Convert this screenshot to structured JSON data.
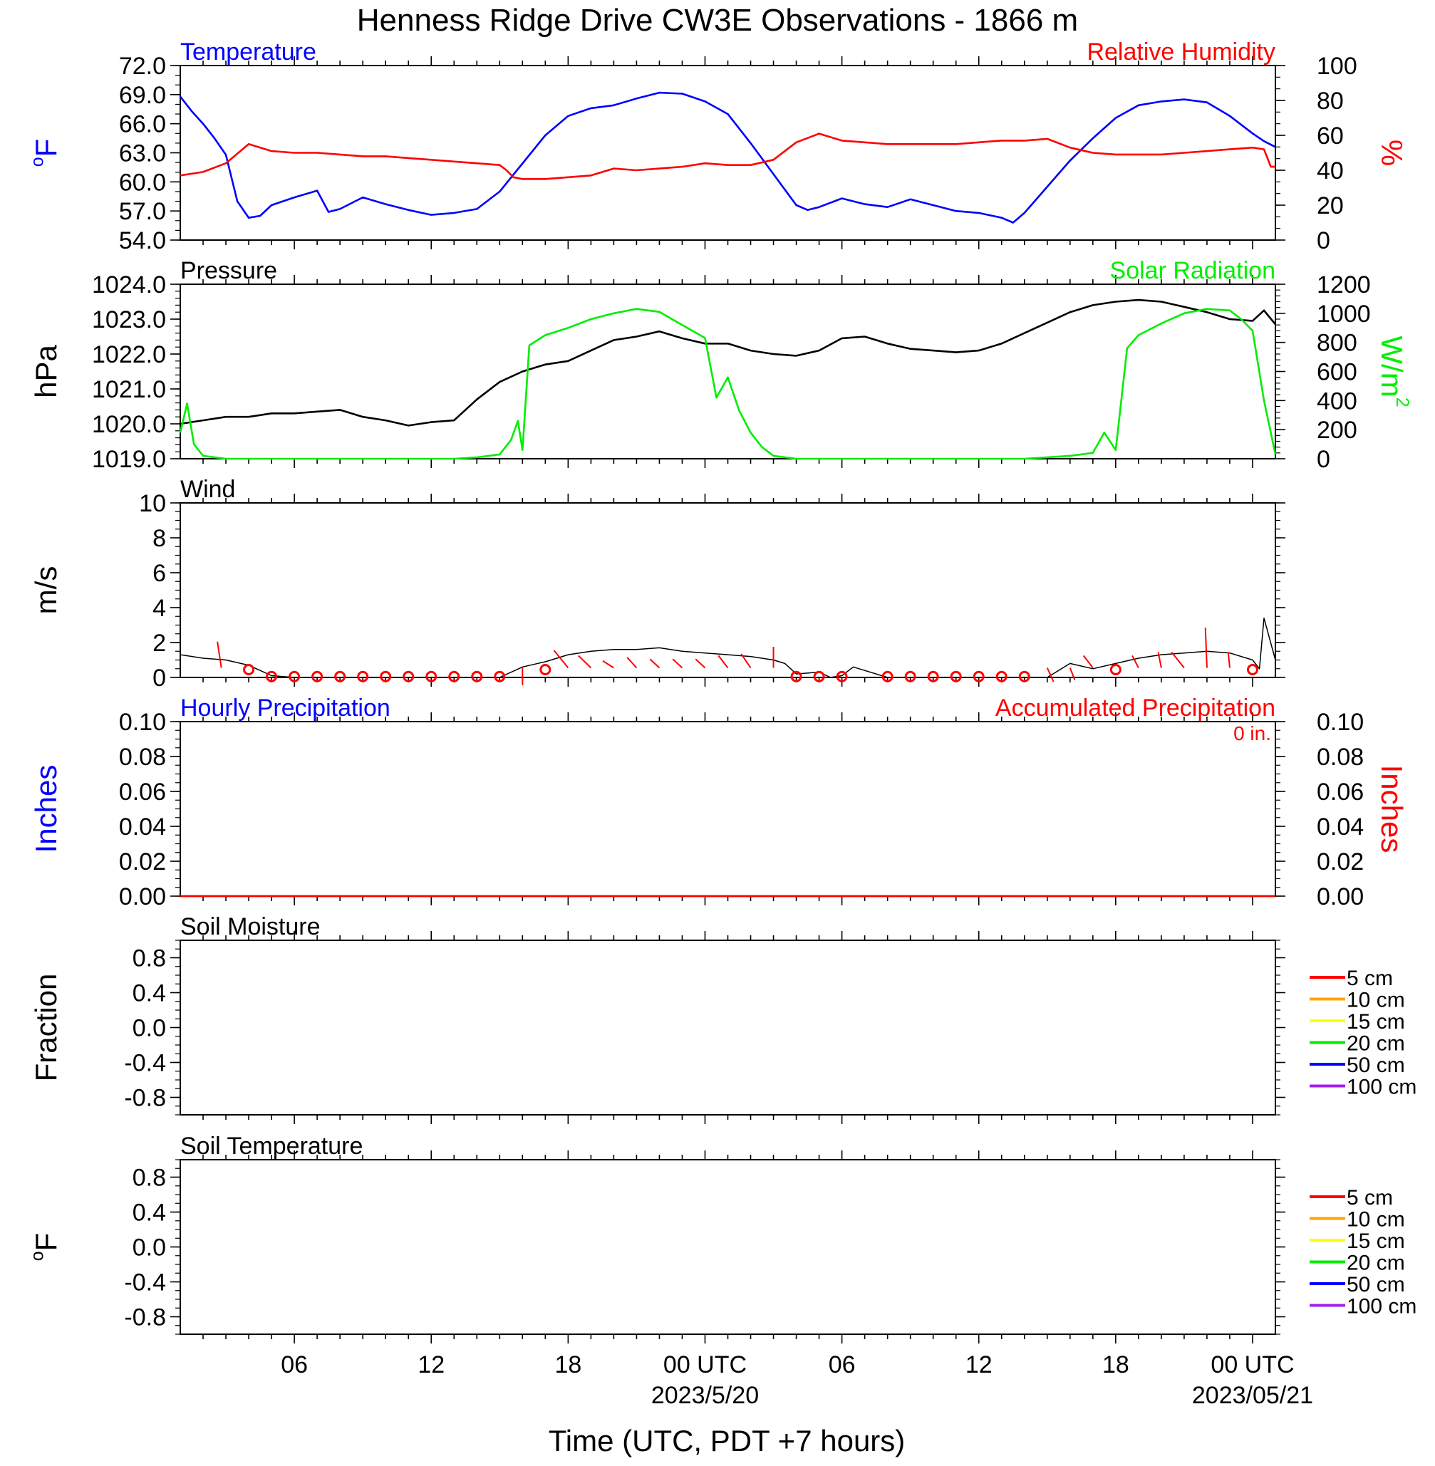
{
  "title": "Henness Ridge Drive CW3E Observations - 1866 m",
  "colors": {
    "blue": "#0000ff",
    "red": "#ff0000",
    "green": "#00ee00",
    "black": "#000000",
    "orange": "#ffa500",
    "yellow": "#ffff00",
    "purple": "#a020f0"
  },
  "time_axis": {
    "tick_labels": [
      "06",
      "12",
      "18",
      "00 UTC",
      "06",
      "12",
      "18",
      "00 UTC"
    ],
    "tick_hours": [
      6,
      12,
      18,
      24,
      30,
      36,
      42,
      48
    ],
    "date_labels": [
      {
        "text": "2023/5/20",
        "hour": 24
      },
      {
        "text": "2023/05/21",
        "hour": 48
      }
    ],
    "xlabel": "Time (UTC, PDT +7 hours)",
    "xlim": [
      1,
      49
    ]
  },
  "chart_data": [
    {
      "type": "line",
      "left_title": "Temperature",
      "right_title": "Relative Humidity",
      "ylabel_left": "oF",
      "ylabel_right": "%",
      "ylim_left": [
        54,
        72
      ],
      "ylim_right": [
        0,
        100
      ],
      "yticks_left": [
        "72.0",
        "69.0",
        "66.0",
        "63.0",
        "60.0",
        "57.0",
        "54.0"
      ],
      "yticks_right": [
        "100",
        "80",
        "60",
        "40",
        "20",
        "0"
      ],
      "series": [
        {
          "name": "Temperature",
          "color": "#0000ff",
          "axis": "left",
          "x": [
            1,
            1.5,
            2,
            2.5,
            3,
            3.5,
            4,
            4.5,
            5,
            6,
            7,
            7.5,
            8,
            9,
            10,
            11,
            12,
            13,
            14,
            15,
            16,
            17,
            18,
            19,
            20,
            21,
            22,
            23,
            24,
            25,
            26,
            27,
            28,
            28.5,
            29,
            30,
            31,
            32,
            33,
            34,
            35,
            36,
            37,
            37.5,
            38,
            39,
            40,
            41,
            42,
            43,
            44,
            45,
            46,
            47,
            48,
            48.5,
            49
          ],
          "y": [
            68.8,
            67.3,
            66.0,
            64.5,
            62.8,
            58.0,
            56.3,
            56.5,
            57.6,
            58.4,
            59.1,
            56.9,
            57.2,
            58.4,
            57.7,
            57.1,
            56.6,
            56.8,
            57.2,
            59.0,
            61.9,
            64.8,
            66.8,
            67.6,
            67.9,
            68.6,
            69.2,
            69.1,
            68.3,
            67.0,
            64.0,
            60.8,
            57.6,
            57.1,
            57.4,
            58.3,
            57.7,
            57.4,
            58.2,
            57.6,
            57.0,
            56.8,
            56.3,
            55.8,
            56.8,
            59.5,
            62.2,
            64.5,
            66.6,
            67.9,
            68.3,
            68.5,
            68.2,
            66.8,
            65.0,
            64.2,
            63.6
          ]
        },
        {
          "name": "Relative Humidity",
          "color": "#ff0000",
          "axis": "right",
          "x": [
            1,
            2,
            3,
            4,
            5,
            6,
            7,
            8,
            9,
            10,
            11,
            12,
            13,
            14,
            15,
            15.3,
            15.6,
            16,
            17,
            18,
            19,
            20,
            21,
            22,
            23,
            24,
            25,
            26,
            27,
            28,
            29,
            30,
            31,
            32,
            33,
            34,
            35,
            36,
            37,
            38,
            39,
            40,
            41,
            42,
            43,
            44,
            45,
            46,
            47,
            48,
            48.5,
            48.8,
            49
          ],
          "y": [
            37,
            39,
            44,
            55,
            51,
            50,
            50,
            49,
            48,
            48,
            47,
            46,
            45,
            44,
            43,
            40,
            36,
            35,
            35,
            36,
            37,
            41,
            40,
            41,
            42,
            44,
            43,
            43,
            46,
            56,
            61,
            57,
            56,
            55,
            55,
            55,
            55,
            56,
            57,
            57,
            58,
            53,
            50,
            49,
            49,
            49,
            50,
            51,
            52,
            53,
            52,
            42,
            42
          ]
        }
      ]
    },
    {
      "type": "line",
      "left_title": "Pressure",
      "right_title": "Solar Radiation",
      "ylabel_left": "hPa",
      "ylabel_right": "W/m2",
      "ylim_left": [
        1019,
        1024
      ],
      "ylim_right": [
        0,
        1200
      ],
      "yticks_left": [
        "1024.0",
        "1023.0",
        "1022.0",
        "1021.0",
        "1020.0",
        "1019.0"
      ],
      "yticks_right": [
        "1200",
        "1000",
        "800",
        "600",
        "400",
        "200",
        "0"
      ],
      "series": [
        {
          "name": "Pressure",
          "color": "#000000",
          "axis": "left",
          "x": [
            1,
            2,
            3,
            4,
            5,
            6,
            7,
            8,
            9,
            10,
            11,
            12,
            13,
            14,
            15,
            16,
            17,
            18,
            19,
            20,
            21,
            22,
            23,
            24,
            25,
            26,
            27,
            28,
            29,
            30,
            31,
            32,
            33,
            34,
            35,
            36,
            37,
            38,
            39,
            40,
            41,
            42,
            43,
            44,
            45,
            46,
            47,
            48,
            48.5,
            49
          ],
          "y": [
            1020.0,
            1020.1,
            1020.2,
            1020.2,
            1020.3,
            1020.3,
            1020.35,
            1020.4,
            1020.2,
            1020.1,
            1019.95,
            1020.05,
            1020.1,
            1020.7,
            1021.2,
            1021.5,
            1021.7,
            1021.8,
            1022.1,
            1022.4,
            1022.5,
            1022.65,
            1022.45,
            1022.3,
            1022.3,
            1022.1,
            1022.0,
            1021.95,
            1022.1,
            1022.45,
            1022.5,
            1022.3,
            1022.15,
            1022.1,
            1022.05,
            1022.1,
            1022.3,
            1022.6,
            1022.9,
            1023.2,
            1023.4,
            1023.5,
            1023.55,
            1023.5,
            1023.35,
            1023.2,
            1023.0,
            1022.95,
            1023.25,
            1022.85
          ]
        },
        {
          "name": "Solar Radiation",
          "color": "#00ee00",
          "axis": "right",
          "x": [
            1,
            1.3,
            1.6,
            2,
            3,
            5,
            8,
            11,
            13,
            14,
            15,
            15.5,
            15.8,
            16,
            16.3,
            16.6,
            17,
            18,
            19,
            20,
            21,
            22,
            23,
            24,
            24.5,
            25,
            25.5,
            26,
            26.5,
            27,
            28,
            30,
            34,
            38,
            40,
            41,
            41.5,
            42,
            42.5,
            43,
            44,
            45,
            46,
            47,
            47.5,
            48,
            48.5,
            49
          ],
          "y": [
            180,
            380,
            100,
            20,
            0,
            0,
            0,
            0,
            0,
            10,
            30,
            130,
            260,
            60,
            780,
            810,
            850,
            900,
            960,
            1000,
            1030,
            1010,
            920,
            830,
            420,
            560,
            330,
            180,
            80,
            20,
            0,
            0,
            0,
            0,
            20,
            40,
            180,
            60,
            760,
            850,
            930,
            1000,
            1030,
            1020,
            960,
            880,
            400,
            30
          ]
        }
      ]
    },
    {
      "type": "line",
      "left_title": "Wind",
      "ylabel_left": "m/s",
      "ylim_left": [
        0,
        10
      ],
      "yticks_left": [
        "10",
        "8",
        "6",
        "4",
        "2",
        "0"
      ],
      "series": [
        {
          "name": "Wind",
          "color": "#000000",
          "axis": "left",
          "x": [
            1,
            2,
            3,
            4,
            4.5,
            5,
            6,
            10,
            15,
            16,
            17,
            18,
            19,
            20,
            21,
            22,
            23,
            24,
            25,
            26,
            27,
            27.5,
            28,
            29,
            29.5,
            30,
            30.5,
            31,
            32,
            33,
            36,
            39,
            40,
            41,
            42,
            43,
            44,
            45,
            46,
            47,
            48,
            48.3,
            48.5,
            49
          ],
          "y": [
            1.3,
            1.1,
            1.0,
            0.7,
            0.4,
            0.1,
            0.0,
            0.0,
            0.0,
            0.6,
            0.9,
            1.3,
            1.5,
            1.6,
            1.6,
            1.7,
            1.5,
            1.4,
            1.3,
            1.2,
            1.0,
            0.8,
            0.2,
            0.3,
            0.0,
            0.1,
            0.6,
            0.4,
            0.0,
            0.0,
            0.0,
            0.0,
            0.8,
            0.5,
            0.8,
            1.1,
            1.3,
            1.4,
            1.5,
            1.4,
            1.0,
            0.5,
            3.4,
            1.0
          ]
        }
      ],
      "barbs": {
        "color": "#ff0000",
        "calm_hours": [
          4,
          5,
          6,
          7,
          8,
          9,
          10,
          11,
          12,
          13,
          14,
          15,
          17,
          28,
          29,
          30,
          32,
          33,
          34,
          35,
          36,
          37,
          38,
          42,
          48
        ],
        "staffs": [
          {
            "hour": 2.8,
            "dx": -0.25,
            "dy": 1.5
          },
          {
            "hour": 16.0,
            "dx": 0.0,
            "dy": -1.0
          },
          {
            "hour": 18.0,
            "dx": -0.9,
            "dy": 1.0
          },
          {
            "hour": 19.0,
            "dx": -0.8,
            "dy": 0.7
          },
          {
            "hour": 20.0,
            "dx": -0.7,
            "dy": 0.4
          },
          {
            "hour": 21.0,
            "dx": -0.6,
            "dy": 0.6
          },
          {
            "hour": 22.0,
            "dx": -0.6,
            "dy": 0.5
          },
          {
            "hour": 23.0,
            "dx": -0.6,
            "dy": 0.5
          },
          {
            "hour": 24.0,
            "dx": -0.6,
            "dy": 0.5
          },
          {
            "hour": 25.0,
            "dx": -0.6,
            "dy": 0.7
          },
          {
            "hour": 26.0,
            "dx": -0.6,
            "dy": 0.8
          },
          {
            "hour": 27.0,
            "dx": 0.0,
            "dy": 1.2
          },
          {
            "hour": 39.0,
            "dx": 0.4,
            "dy": -0.8
          },
          {
            "hour": 40.0,
            "dx": 0.3,
            "dy": -0.7
          },
          {
            "hour": 41.0,
            "dx": -0.6,
            "dy": 0.7
          },
          {
            "hour": 43.0,
            "dx": -0.4,
            "dy": 0.7
          },
          {
            "hour": 44.0,
            "dx": -0.2,
            "dy": 0.9
          },
          {
            "hour": 45.0,
            "dx": -0.8,
            "dy": 0.9
          },
          {
            "hour": 46.0,
            "dx": -0.1,
            "dy": 2.3
          },
          {
            "hour": 47.0,
            "dx": -0.1,
            "dy": 0.9
          }
        ]
      }
    },
    {
      "type": "line",
      "left_title": "Hourly Precipitation",
      "right_title": "Accumulated Precipitation",
      "annotation": "0 in.",
      "ylabel_left": "Inches",
      "ylabel_right": "Inches",
      "ylim_left": [
        0,
        0.1
      ],
      "ylim_right": [
        0,
        0.1
      ],
      "yticks_left": [
        "0.10",
        "0.08",
        "0.06",
        "0.04",
        "0.02",
        "0.00"
      ],
      "yticks_right": [
        "0.10",
        "0.08",
        "0.06",
        "0.04",
        "0.02",
        "0.00"
      ],
      "series": [
        {
          "name": "Hourly Precipitation",
          "color": "#0000ff",
          "axis": "left",
          "x": [
            1,
            49
          ],
          "y": [
            0,
            0
          ]
        },
        {
          "name": "Accumulated Precipitation",
          "color": "#ff0000",
          "axis": "right",
          "x": [
            1,
            49
          ],
          "y": [
            0,
            0
          ]
        }
      ]
    },
    {
      "type": "line",
      "left_title": "Soil Moisture",
      "ylabel_left": "Fraction",
      "ylim_left": [
        -1.0,
        1.0
      ],
      "yticks_left": [
        "0.8",
        "0.4",
        "0.0",
        "-0.4",
        "-0.8"
      ],
      "yticks_values": [
        0.8,
        0.4,
        0.0,
        -0.4,
        -0.8
      ],
      "legend": {
        "placement": "right",
        "entries": [
          {
            "label": "5 cm",
            "color": "#ff0000"
          },
          {
            "label": "10 cm",
            "color": "#ffa500"
          },
          {
            "label": "15 cm",
            "color": "#ffff00"
          },
          {
            "label": "20 cm",
            "color": "#00ee00"
          },
          {
            "label": "50 cm",
            "color": "#0000ff"
          },
          {
            "label": "100 cm",
            "color": "#a020f0"
          }
        ]
      },
      "series": []
    },
    {
      "type": "line",
      "left_title": "Soil Temperature",
      "ylabel_left": "oF",
      "ylim_left": [
        -1.0,
        1.0
      ],
      "yticks_left": [
        "0.8",
        "0.4",
        "0.0",
        "-0.4",
        "-0.8"
      ],
      "yticks_values": [
        0.8,
        0.4,
        0.0,
        -0.4,
        -0.8
      ],
      "legend": {
        "placement": "right",
        "entries": [
          {
            "label": "5 cm",
            "color": "#ff0000"
          },
          {
            "label": "10 cm",
            "color": "#ffa500"
          },
          {
            "label": "15 cm",
            "color": "#ffff00"
          },
          {
            "label": "20 cm",
            "color": "#00ee00"
          },
          {
            "label": "50 cm",
            "color": "#0000ff"
          },
          {
            "label": "100 cm",
            "color": "#a020f0"
          }
        ]
      },
      "series": []
    }
  ]
}
